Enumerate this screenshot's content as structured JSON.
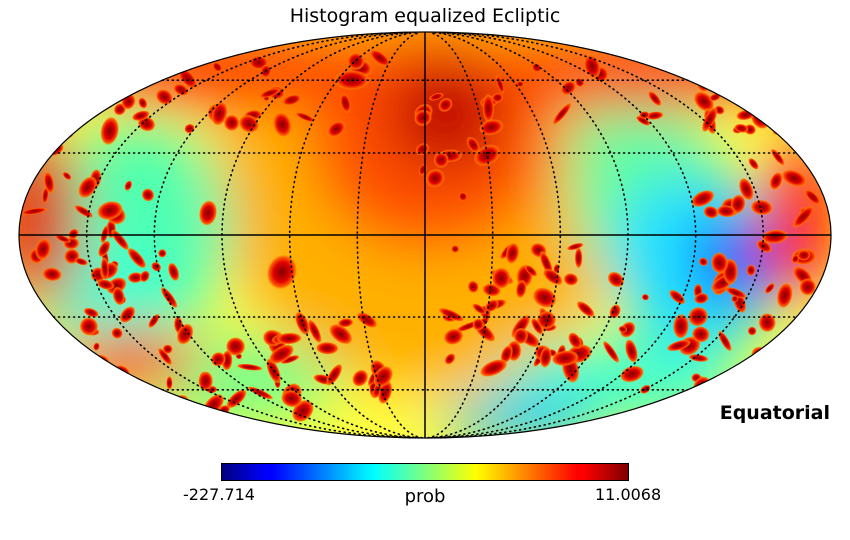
{
  "chart_data": {
    "type": "heatmap",
    "projection": "mollweide",
    "title": "Histogram equalized Ecliptic",
    "coordinate_frame_label": "Equatorial",
    "colormap": "jet",
    "colorbar": {
      "min_label": "-227.714",
      "max_label": "11.0068",
      "unit_label": "prob",
      "min": -227.714,
      "max": 11.0068
    },
    "graticule": {
      "style": "dotted",
      "meridians_deg": [
        -150,
        -120,
        -90,
        -60,
        -30,
        0,
        30,
        60,
        90,
        120,
        150
      ],
      "parallels_deg": [
        -60,
        -30,
        0,
        30,
        60
      ]
    },
    "hot_spot": {
      "lon": 0,
      "lat": 45
    },
    "cold_region": {
      "lon": -130,
      "lat": 0
    },
    "colors": {
      "hot": "#8b0000",
      "mid": "#ffff00",
      "cold": "#0000cd",
      "line": "#000000"
    }
  }
}
